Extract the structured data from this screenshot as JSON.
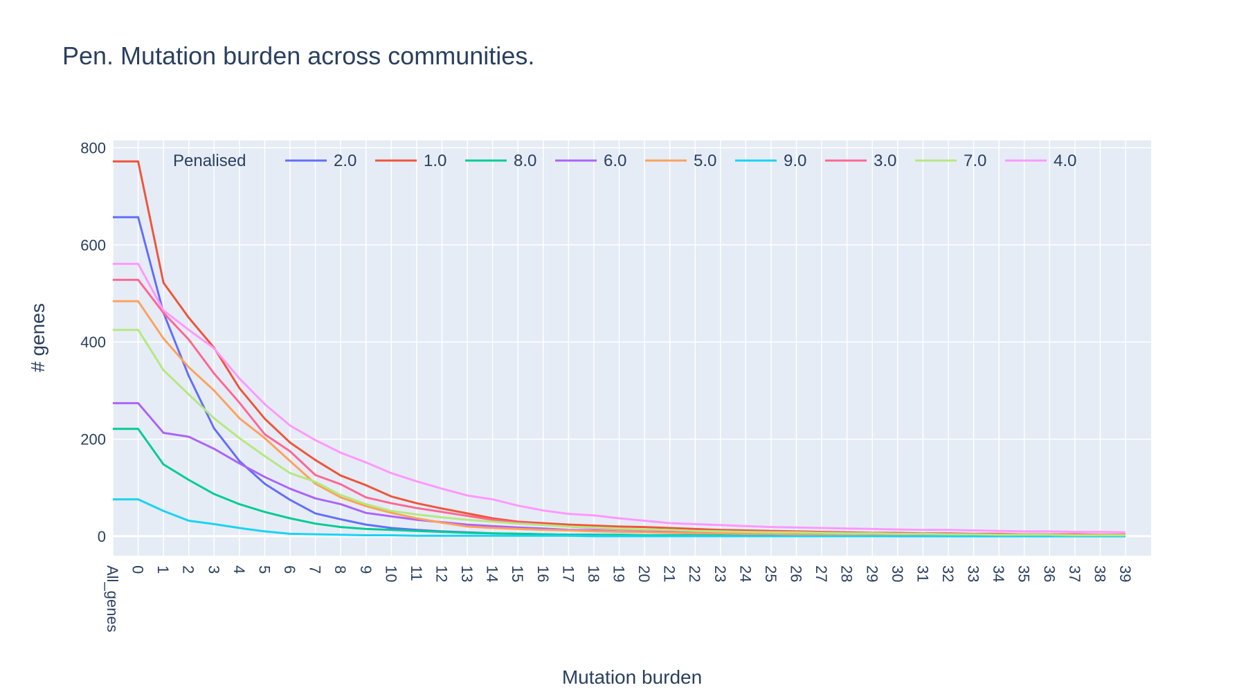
{
  "chart_data": {
    "type": "line",
    "title": "Pen. Mutation burden across communities.",
    "xlabel": "Mutation burden",
    "ylabel": "# genes",
    "legend_title": "Penalised",
    "legend_position": "top-inside",
    "grid": true,
    "colors": {
      "plot_bg": "#e5ecf6",
      "grid": "#ffffff",
      "text": "#2a3f5f"
    },
    "ylim": [
      -40,
      815
    ],
    "y_ticks": [
      0,
      200,
      400,
      600,
      800
    ],
    "categories": [
      "All_genes",
      "0",
      "1",
      "2",
      "3",
      "4",
      "5",
      "6",
      "7",
      "8",
      "9",
      "10",
      "11",
      "12",
      "13",
      "14",
      "15",
      "16",
      "17",
      "18",
      "19",
      "20",
      "21",
      "22",
      "23",
      "24",
      "25",
      "26",
      "27",
      "28",
      "29",
      "30",
      "31",
      "32",
      "33",
      "34",
      "35",
      "36",
      "37",
      "38",
      "39"
    ],
    "series": [
      {
        "name": "2.0",
        "color": "#636efa",
        "values": [
          657,
          657,
          460,
          330,
          222,
          155,
          108,
          75,
          47,
          35,
          24,
          17,
          13,
          10,
          8,
          6,
          5,
          4,
          3,
          3,
          2,
          2,
          2,
          1,
          1,
          1,
          1,
          1,
          1,
          1,
          1,
          0,
          0,
          0,
          0,
          0,
          0,
          0,
          0,
          0,
          0
        ]
      },
      {
        "name": "1.0",
        "color": "#ef553b",
        "values": [
          772,
          772,
          522,
          450,
          388,
          305,
          242,
          193,
          157,
          125,
          105,
          82,
          68,
          57,
          47,
          37,
          30,
          27,
          24,
          22,
          20,
          19,
          17,
          15,
          13,
          12,
          11,
          10,
          9,
          8,
          7,
          7,
          6,
          6,
          5,
          5,
          4,
          4,
          4,
          3,
          3
        ]
      },
      {
        "name": "8.0",
        "color": "#00cc96",
        "values": [
          221,
          221,
          148,
          116,
          87,
          66,
          50,
          37,
          26,
          19,
          15,
          13,
          11,
          9,
          7,
          6,
          5,
          4,
          3,
          3,
          3,
          2,
          2,
          2,
          2,
          1,
          1,
          1,
          1,
          1,
          1,
          1,
          1,
          0,
          0,
          0,
          0,
          0,
          0,
          0,
          0
        ]
      },
      {
        "name": "6.0",
        "color": "#ab63fa",
        "values": [
          274,
          274,
          213,
          205,
          180,
          150,
          122,
          98,
          78,
          66,
          48,
          41,
          34,
          29,
          24,
          21,
          18,
          16,
          13,
          12,
          10,
          9,
          8,
          7,
          6,
          5,
          5,
          4,
          4,
          3,
          3,
          3,
          2,
          2,
          2,
          2,
          2,
          1,
          1,
          1,
          1
        ]
      },
      {
        "name": "5.0",
        "color": "#ffa15a",
        "values": [
          484,
          484,
          407,
          348,
          300,
          243,
          202,
          155,
          108,
          80,
          62,
          48,
          37,
          28,
          20,
          17,
          15,
          13,
          12,
          10,
          9,
          8,
          7,
          6,
          6,
          5,
          5,
          4,
          4,
          3,
          3,
          3,
          2,
          2,
          2,
          2,
          2,
          1,
          1,
          1,
          1
        ]
      },
      {
        "name": "9.0",
        "color": "#19d3f3",
        "values": [
          76,
          76,
          52,
          32,
          25,
          17,
          10,
          5,
          4,
          3,
          2,
          2,
          1,
          1,
          1,
          1,
          1,
          1,
          1,
          0,
          0,
          0,
          0,
          0,
          0,
          0,
          0,
          0,
          0,
          0,
          0,
          0,
          0,
          0,
          0,
          0,
          0,
          0,
          0,
          0,
          0
        ]
      },
      {
        "name": "3.0",
        "color": "#ff6692",
        "values": [
          528,
          528,
          460,
          405,
          335,
          275,
          210,
          175,
          126,
          107,
          80,
          68,
          58,
          50,
          42,
          34,
          28,
          24,
          20,
          17,
          15,
          13,
          12,
          11,
          10,
          9,
          9,
          8,
          7,
          7,
          6,
          6,
          5,
          5,
          4,
          4,
          4,
          3,
          3,
          3,
          2
        ]
      },
      {
        "name": "7.0",
        "color": "#b6e880",
        "values": [
          425,
          425,
          342,
          292,
          243,
          202,
          165,
          130,
          112,
          85,
          66,
          52,
          45,
          39,
          34,
          30,
          26,
          23,
          20,
          18,
          16,
          14,
          13,
          11,
          10,
          9,
          8,
          8,
          7,
          6,
          6,
          5,
          5,
          4,
          4,
          3,
          3,
          3,
          2,
          2,
          2
        ]
      },
      {
        "name": "4.0",
        "color": "#ff97ff",
        "values": [
          561,
          561,
          465,
          425,
          387,
          325,
          272,
          228,
          198,
          172,
          152,
          130,
          113,
          98,
          84,
          76,
          63,
          53,
          46,
          43,
          37,
          32,
          27,
          25,
          23,
          21,
          19,
          18,
          17,
          16,
          15,
          14,
          13,
          13,
          12,
          11,
          10,
          10,
          9,
          9,
          8
        ]
      }
    ]
  }
}
